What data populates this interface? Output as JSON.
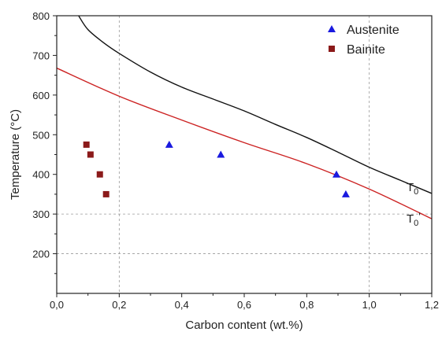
{
  "chart_data": {
    "type": "scatter",
    "xlabel": "Carbon content (wt.%)",
    "ylabel": "Temperature (°C)",
    "xlim": [
      0,
      1.2
    ],
    "ylim": [
      100,
      800
    ],
    "x_ticks": [
      "0,0",
      "0,2",
      "0,4",
      "0,6",
      "0,8",
      "1,0",
      "1,2"
    ],
    "x_tick_values": [
      0,
      0.2,
      0.4,
      0.6,
      0.8,
      1.0,
      1.2
    ],
    "y_ticks": [
      "200",
      "300",
      "400",
      "500",
      "600",
      "700",
      "800"
    ],
    "y_tick_values": [
      200,
      300,
      400,
      500,
      600,
      700,
      800
    ],
    "grid": "dashed at x=0.2 and x=1.0 and y=200, 300",
    "legend_position": "top-right",
    "series": [
      {
        "name": "Austenite",
        "marker": "triangle",
        "color": "#1a1adf",
        "points": [
          [
            0.36,
            475
          ],
          [
            0.525,
            450
          ],
          [
            0.895,
            400
          ],
          [
            0.925,
            350
          ]
        ]
      },
      {
        "name": "Bainite",
        "marker": "square",
        "color": "#8b1a1a",
        "points": [
          [
            0.095,
            475
          ],
          [
            0.108,
            450
          ],
          [
            0.138,
            400
          ],
          [
            0.158,
            350
          ]
        ]
      }
    ],
    "curves": [
      {
        "label_main": "T",
        "label_sub": "0",
        "label_prime": "",
        "color": "#111111",
        "points": [
          [
            0.07,
            800
          ],
          [
            0.1,
            765
          ],
          [
            0.15,
            732
          ],
          [
            0.2,
            705
          ],
          [
            0.3,
            658
          ],
          [
            0.4,
            620
          ],
          [
            0.5,
            590
          ],
          [
            0.6,
            560
          ],
          [
            0.7,
            526
          ],
          [
            0.8,
            493
          ],
          [
            0.9,
            456
          ],
          [
            1.0,
            418
          ],
          [
            1.1,
            385
          ],
          [
            1.2,
            352
          ]
        ]
      },
      {
        "label_main": "T",
        "label_sub": "0",
        "label_prime": "'",
        "color": "#cc2222",
        "points": [
          [
            0.0,
            668
          ],
          [
            0.2,
            597
          ],
          [
            0.4,
            537
          ],
          [
            0.6,
            480
          ],
          [
            0.8,
            427
          ],
          [
            1.0,
            363
          ],
          [
            1.2,
            288
          ]
        ]
      }
    ]
  }
}
